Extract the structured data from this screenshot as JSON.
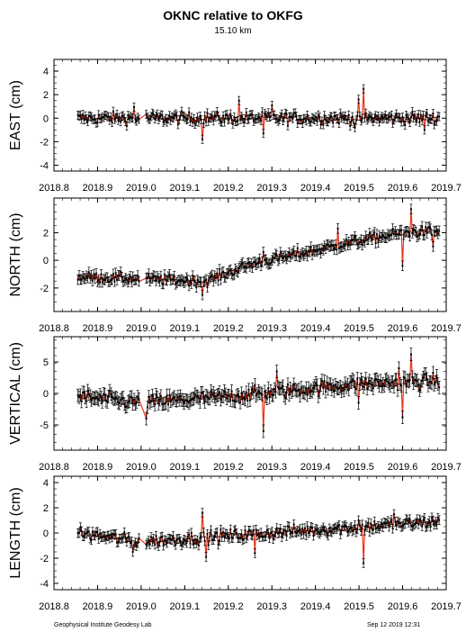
{
  "title": "OKNC relative to OKFG",
  "subtitle": "15.10 km",
  "footer": {
    "lab": "Geophysical Institute Geodesy Lab",
    "timestamp": "Sep 12 2019 12:31"
  },
  "chart_data": [
    {
      "type": "scatter",
      "ylabel": "EAST (cm)",
      "xlim": [
        2018.8,
        2019.7
      ],
      "ylim": [
        -4.5,
        5
      ],
      "y_ticks": [
        -4,
        -2,
        0,
        2,
        4
      ],
      "x_ticks": [
        2018.8,
        2018.9,
        2019.0,
        2019.1,
        2019.2,
        2019.3,
        2019.4,
        2019.5,
        2019.6,
        2019.7
      ],
      "start": 2018.855,
      "end": 2019.685,
      "step": 0.0028,
      "trend": [
        [
          2018.855,
          0
        ],
        [
          2019.685,
          0
        ]
      ],
      "noise": 0.4,
      "error_bar": 0.35,
      "events": [
        [
          2018.985,
          0.95
        ],
        [
          2019.14,
          -1.8
        ],
        [
          2019.225,
          1.5
        ],
        [
          2019.28,
          -1.3
        ],
        [
          2019.3,
          1.1
        ],
        [
          2019.51,
          2.5
        ],
        [
          2019.5,
          1.6
        ],
        [
          2019.49,
          -0.8
        ],
        [
          2019.65,
          -1.0
        ]
      ]
    },
    {
      "type": "scatter",
      "ylabel": "NORTH (cm)",
      "xlim": [
        2018.8,
        2019.7
      ],
      "ylim": [
        -3.7,
        4.5
      ],
      "y_ticks": [
        -2,
        0,
        2
      ],
      "x_ticks": [
        2018.8,
        2018.9,
        2019.0,
        2019.1,
        2019.2,
        2019.3,
        2019.4,
        2019.5,
        2019.6,
        2019.7
      ],
      "start": 2018.855,
      "end": 2019.685,
      "step": 0.0028,
      "trend": [
        [
          2018.855,
          -1.2
        ],
        [
          2019.15,
          -1.5
        ],
        [
          2019.25,
          -0.3
        ],
        [
          2019.5,
          1.4
        ],
        [
          2019.6,
          2.0
        ],
        [
          2019.685,
          2.1
        ]
      ],
      "noise": 0.3,
      "error_bar": 0.35,
      "events": [
        [
          2019.28,
          0.6
        ],
        [
          2019.45,
          2.3
        ],
        [
          2019.6,
          -0.4
        ],
        [
          2019.62,
          3.7
        ],
        [
          2019.67,
          1.0
        ],
        [
          2019.14,
          -2.5
        ]
      ]
    },
    {
      "type": "scatter",
      "ylabel": "VERTICAL (cm)",
      "xlim": [
        2018.8,
        2019.7
      ],
      "ylim": [
        -9,
        9
      ],
      "y_ticks": [
        -5,
        0,
        5
      ],
      "x_ticks": [
        2018.8,
        2018.9,
        2019.0,
        2019.1,
        2019.2,
        2019.3,
        2019.4,
        2019.5,
        2019.6,
        2019.7
      ],
      "start": 2018.855,
      "end": 2019.685,
      "step": 0.0028,
      "trend": [
        [
          2018.855,
          -0.5
        ],
        [
          2019.0,
          -1.5
        ],
        [
          2019.2,
          -0.5
        ],
        [
          2019.5,
          1.5
        ],
        [
          2019.685,
          2.0
        ]
      ],
      "noise": 0.9,
      "error_bar": 1.0,
      "events": [
        [
          2019.01,
          -4.0
        ],
        [
          2019.28,
          -6.0
        ],
        [
          2019.31,
          3.5
        ],
        [
          2019.5,
          -1.5
        ],
        [
          2019.6,
          -3.8
        ],
        [
          2019.62,
          6.2
        ],
        [
          2019.59,
          4.0
        ]
      ]
    },
    {
      "type": "scatter",
      "ylabel": "LENGTH (cm)",
      "xlim": [
        2018.8,
        2019.7
      ],
      "ylim": [
        -4.5,
        4.5
      ],
      "y_ticks": [
        -4,
        -2,
        0,
        2,
        4
      ],
      "x_ticks": [
        2018.8,
        2018.9,
        2019.0,
        2019.1,
        2019.2,
        2019.3,
        2019.4,
        2019.5,
        2019.6,
        2019.7
      ],
      "start": 2018.855,
      "end": 2019.685,
      "step": 0.0028,
      "trend": [
        [
          2018.855,
          0
        ],
        [
          2019.0,
          -0.7
        ],
        [
          2019.3,
          0
        ],
        [
          2019.685,
          0.9
        ]
      ],
      "noise": 0.4,
      "error_bar": 0.35,
      "events": [
        [
          2018.98,
          -1.5
        ],
        [
          2019.14,
          1.6
        ],
        [
          2019.15,
          -1.9
        ],
        [
          2019.26,
          -1.6
        ],
        [
          2019.51,
          -2.4
        ],
        [
          2019.5,
          1.0
        ],
        [
          2019.58,
          1.5
        ]
      ]
    }
  ]
}
